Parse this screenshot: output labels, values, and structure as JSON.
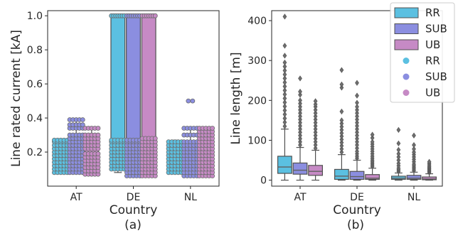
{
  "colors": {
    "RR": "#5bc0e1",
    "SUB": "#8b8ee0",
    "UB": "#c68ac5",
    "median": "#606060",
    "outline": "#505050"
  },
  "chart_data": [
    {
      "type": "box",
      "panel_label": "(a)",
      "xlabel": "Country",
      "ylabel": "Line rated current [kA]",
      "categories": [
        "AT",
        "DE",
        "NL"
      ],
      "ylim": [
        0.0,
        1.03
      ],
      "yticks": [
        0.2,
        0.4,
        0.6,
        0.8,
        1.0
      ],
      "ytick_labels": [
        "0.2",
        "0.4",
        "0.6",
        "0.8",
        "1.0"
      ],
      "series": [
        {
          "name": "RR",
          "color": "#5bc0e1",
          "boxes": [
            {
              "q1": 0.1,
              "median": 0.18,
              "q3": 0.27,
              "whisker_low": 0.08,
              "whisker_high": 0.27,
              "points": [
                0.08,
                0.1,
                0.12,
                0.14,
                0.16,
                0.18,
                0.2,
                0.22,
                0.24,
                0.26,
                0.27
              ]
            },
            {
              "q1": 0.12,
              "median": 1.0,
              "q3": 1.0,
              "whisker_low": 0.08,
              "whisker_high": 1.0,
              "points": [
                0.1,
                0.12,
                0.14,
                0.16,
                0.18,
                0.2,
                0.22,
                0.24,
                0.26,
                0.27,
                1.0
              ]
            },
            {
              "q1": 0.09,
              "median": 0.18,
              "q3": 0.26,
              "whisker_low": 0.08,
              "whisker_high": 0.27,
              "points": [
                0.08,
                0.1,
                0.12,
                0.14,
                0.16,
                0.18,
                0.2,
                0.22,
                0.24,
                0.26
              ]
            }
          ]
        },
        {
          "name": "SUB",
          "color": "#8b8ee0",
          "boxes": [
            {
              "q1": 0.19,
              "median": 0.23,
              "q3": 0.27,
              "whisker_low": 0.08,
              "whisker_high": 0.39,
              "points": [
                0.08,
                0.1,
                0.12,
                0.14,
                0.16,
                0.18,
                0.2,
                0.22,
                0.24,
                0.26,
                0.28,
                0.3,
                0.34,
                0.36,
                0.39
              ]
            },
            {
              "q1": 0.08,
              "median": 0.23,
              "q3": 1.0,
              "whisker_low": 0.06,
              "whisker_high": 1.0,
              "points": [
                0.06,
                0.08,
                0.1,
                0.12,
                0.14,
                0.16,
                0.18,
                0.2,
                0.22,
                0.24,
                0.26,
                0.27,
                1.0
              ]
            },
            {
              "q1": 0.09,
              "median": 0.16,
              "q3": 0.24,
              "whisker_low": 0.06,
              "whisker_high": 0.34,
              "outliers": [
                0.5
              ],
              "points": [
                0.06,
                0.08,
                0.1,
                0.12,
                0.14,
                0.16,
                0.18,
                0.2,
                0.22,
                0.24,
                0.26,
                0.3,
                0.34
              ]
            }
          ]
        },
        {
          "name": "UB",
          "color": "#c68ac5",
          "boxes": [
            {
              "q1": 0.14,
              "median": 0.22,
              "q3": 0.27,
              "whisker_low": 0.07,
              "whisker_high": 0.34,
              "points": [
                0.07,
                0.09,
                0.11,
                0.13,
                0.15,
                0.17,
                0.19,
                0.22,
                0.24,
                0.26,
                0.28,
                0.3,
                0.34
              ]
            },
            {
              "q1": 0.08,
              "median": 1.0,
              "q3": 1.0,
              "whisker_low": 0.06,
              "whisker_high": 1.0,
              "points": [
                0.06,
                0.08,
                0.1,
                0.12,
                0.14,
                0.16,
                0.18,
                0.2,
                0.22,
                0.24,
                0.26,
                0.28,
                1.0
              ]
            },
            {
              "q1": 0.08,
              "median": 0.22,
              "q3": 0.34,
              "whisker_low": 0.06,
              "whisker_high": 0.34,
              "points": [
                0.06,
                0.08,
                0.1,
                0.12,
                0.14,
                0.16,
                0.18,
                0.2,
                0.22,
                0.24,
                0.26,
                0.28,
                0.3,
                0.32,
                0.34
              ]
            }
          ]
        }
      ]
    },
    {
      "type": "box",
      "panel_label": "(b)",
      "xlabel": "Country",
      "ylabel": "Line length [m]",
      "categories": [
        "AT",
        "DE",
        "NL"
      ],
      "ylim": [
        -15,
        425
      ],
      "yticks": [
        0,
        100,
        200,
        300,
        400
      ],
      "ytick_labels": [
        "0",
        "100",
        "200",
        "300",
        "400"
      ],
      "legend": {
        "placement": "top-right",
        "entries": [
          "RR",
          "SUB",
          "UB",
          "RR",
          "SUB",
          "UB"
        ]
      },
      "series": [
        {
          "name": "RR",
          "color": "#5bc0e1",
          "boxes": [
            {
              "q1": 17,
              "median": 33,
              "q3": 60,
              "whisker_low": 0,
              "whisker_high": 128,
              "outliers": [
                135,
                145,
                155,
                165,
                175,
                185,
                195,
                205,
                215,
                225,
                235,
                245,
                255,
                265,
                275,
                285,
                295,
                312,
                337,
                410
              ]
            },
            {
              "q1": 2,
              "median": 10,
              "q3": 27,
              "whisker_low": 0,
              "whisker_high": 64,
              "outliers": [
                70,
                78,
                86,
                94,
                102,
                110,
                118,
                126,
                134,
                142,
                150,
                172,
                232,
                240,
                276
              ]
            },
            {
              "q1": 2,
              "median": 5,
              "q3": 10,
              "whisker_low": 0,
              "whisker_high": 18,
              "outliers": [
                22,
                26,
                30,
                36,
                42,
                50,
                58,
                66,
                76,
                92,
                126
              ]
            }
          ]
        },
        {
          "name": "SUB",
          "color": "#8b8ee0",
          "boxes": [
            {
              "q1": 15,
              "median": 25,
              "q3": 43,
              "whisker_low": 0,
              "whisker_high": 82,
              "outliers": [
                88,
                96,
                104,
                112,
                120,
                128,
                136,
                144,
                152,
                160,
                168,
                176,
                184,
                192,
                200,
                214,
                222,
                255
              ]
            },
            {
              "q1": 2,
              "median": 9,
              "q3": 22,
              "whisker_low": 0,
              "whisker_high": 50,
              "outliers": [
                55,
                60,
                66,
                72,
                80,
                88,
                96,
                104,
                112,
                120,
                128,
                136,
                144,
                152,
                160,
                168,
                176,
                184,
                194,
                212,
                244
              ]
            },
            {
              "q1": 2,
              "median": 5,
              "q3": 12,
              "whisker_low": 0,
              "whisker_high": 20,
              "outliers": [
                24,
                28,
                32,
                36,
                40,
                46,
                52,
                58,
                64,
                70,
                78,
                88,
                112
              ]
            }
          ]
        },
        {
          "name": "UB",
          "color": "#c68ac5",
          "boxes": [
            {
              "q1": 12,
              "median": 22,
              "q3": 37,
              "whisker_low": 0,
              "whisker_high": 75,
              "outliers": [
                80,
                88,
                96,
                104,
                112,
                120,
                128,
                136,
                144,
                152,
                160,
                168,
                176,
                184,
                190,
                198
              ]
            },
            {
              "q1": 2,
              "median": 5,
              "q3": 14,
              "whisker_low": 0,
              "whisker_high": 30,
              "outliers": [
                34,
                38,
                42,
                46,
                50,
                55,
                60,
                66,
                72,
                78,
                84,
                90,
                96,
                106,
                114
              ]
            },
            {
              "q1": 1,
              "median": 3,
              "q3": 8,
              "whisker_low": 0,
              "whisker_high": 16,
              "outliers": [
                19,
                22,
                25,
                28,
                31,
                34,
                38,
                42,
                46
              ]
            }
          ]
        }
      ]
    }
  ]
}
